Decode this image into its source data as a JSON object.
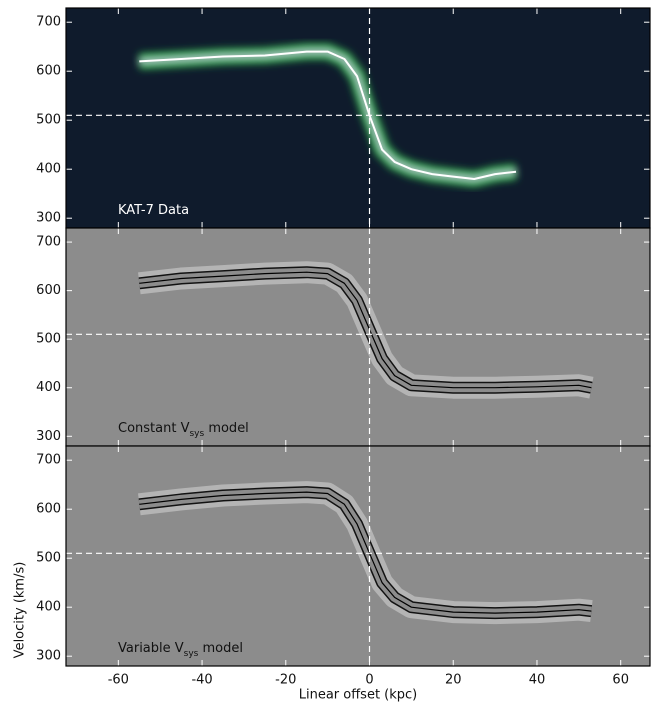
{
  "chart_data": [
    {
      "type": "line",
      "annotation": [
        "KAT-7 Data"
      ],
      "color": "#ffffff",
      "background": "#0f1b2c",
      "x": [
        -55,
        -45,
        -35,
        -25,
        -15,
        -10,
        -6,
        -3,
        0,
        3,
        6,
        10,
        15,
        20,
        25,
        30,
        35
      ],
      "values": [
        620,
        625,
        630,
        632,
        640,
        640,
        625,
        590,
        510,
        440,
        415,
        400,
        390,
        385,
        380,
        390,
        395
      ],
      "xlim": [
        -72.5,
        67
      ],
      "ylim": [
        280,
        729
      ],
      "yticks": [
        300,
        400,
        500,
        600,
        700
      ],
      "vline": 0,
      "hline": 510
    },
    {
      "type": "line",
      "annotation": [
        "Constant V",
        "sys",
        " model"
      ],
      "color": "#000000",
      "background": "#8c8c8c",
      "x": [
        -55,
        -45,
        -35,
        -25,
        -15,
        -10,
        -6,
        -3,
        0,
        3,
        6,
        10,
        20,
        30,
        40,
        50,
        53
      ],
      "values": [
        615,
        625,
        630,
        635,
        638,
        635,
        615,
        580,
        520,
        460,
        425,
        405,
        400,
        400,
        402,
        405,
        400
      ],
      "xlim": [
        -72.5,
        67
      ],
      "ylim": [
        280,
        729
      ],
      "yticks": [
        300,
        400,
        500,
        600,
        700
      ],
      "vline": 0,
      "hline": 510
    },
    {
      "type": "line",
      "annotation": [
        "Variable V",
        "sys",
        " model"
      ],
      "color": "#000000",
      "background": "#8c8c8c",
      "x": [
        -55,
        -45,
        -35,
        -25,
        -15,
        -10,
        -6,
        -3,
        0,
        3,
        6,
        10,
        20,
        30,
        40,
        50,
        53
      ],
      "values": [
        610,
        620,
        628,
        632,
        635,
        632,
        610,
        570,
        510,
        450,
        420,
        400,
        390,
        388,
        390,
        395,
        392
      ],
      "xlim": [
        -72.5,
        67
      ],
      "ylim": [
        280,
        729
      ],
      "yticks": [
        300,
        400,
        500,
        600,
        700
      ],
      "vline": 0,
      "hline": 510,
      "xticks": [
        -60,
        -40,
        -20,
        0,
        20,
        40,
        60
      ],
      "xlabel": "Linear offset (kpc)",
      "ylabel": "Velocity (km/s)"
    }
  ]
}
